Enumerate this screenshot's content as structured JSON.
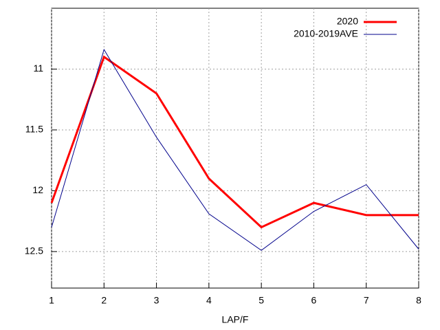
{
  "chart_data": {
    "type": "line",
    "x_label": "LAP/F",
    "x": [
      1,
      2,
      3,
      4,
      5,
      6,
      7,
      8
    ],
    "series": [
      {
        "name": "2020",
        "color": "#ff0000",
        "line_width": 3,
        "values": [
          12.1,
          10.9,
          11.2,
          11.9,
          12.3,
          12.1,
          12.2,
          12.2
        ]
      },
      {
        "name": "2010-2019AVE",
        "color": "#00008b",
        "line_width": 1,
        "values": [
          12.3,
          10.84,
          11.56,
          12.19,
          12.49,
          12.17,
          11.95,
          12.48
        ]
      }
    ],
    "xlim": [
      1,
      8
    ],
    "xticks": [
      1,
      2,
      3,
      4,
      5,
      6,
      7,
      8
    ],
    "ylim": [
      10.5,
      12.8
    ],
    "y_reversed": true,
    "yticks": [
      11,
      11.5,
      12,
      12.5
    ],
    "grid": true,
    "legend": "top-right"
  }
}
